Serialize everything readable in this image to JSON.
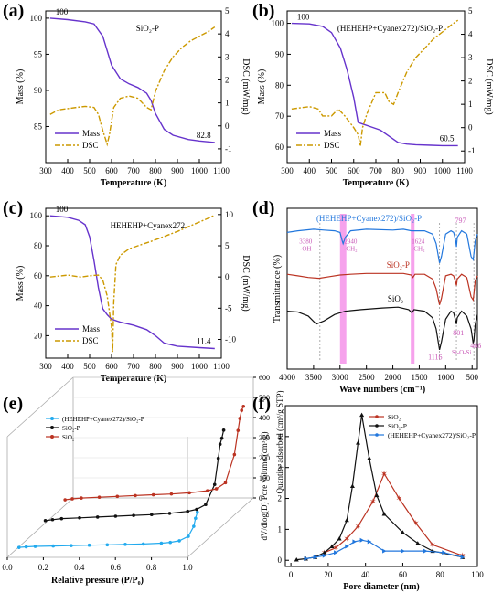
{
  "panels": {
    "a": {
      "letter": "(a)"
    },
    "b": {
      "letter": "(b)"
    },
    "c": {
      "letter": "(c)"
    },
    "d": {
      "letter": "(d)"
    },
    "e": {
      "letter": "(e)"
    },
    "f": {
      "letter": "(f)"
    }
  },
  "colors": {
    "mass": "#6633cc",
    "dsc": "#cc9900",
    "pink": "#ee55dd",
    "blue": "#2277dd",
    "red": "#bb3322",
    "black": "#111111",
    "cyan": "#22aaee"
  },
  "chart_data": [
    {
      "id": "a",
      "type": "line",
      "annotation": "SiO₂-P",
      "xlabel": "Temperature (K)",
      "ylabel": "Mass (%)",
      "y2label": "DSC (mW/mg)",
      "xlim": [
        300,
        1100
      ],
      "ylim": [
        80,
        101
      ],
      "y2lim": [
        -1.6,
        5
      ],
      "xticks": [
        300,
        400,
        500,
        600,
        700,
        800,
        900,
        1000,
        1100
      ],
      "yticks": [
        85,
        90,
        95,
        100
      ],
      "y2ticks": [
        -1,
        0,
        1,
        2,
        3,
        4,
        5
      ],
      "start_label": "100",
      "end_label": "82.8",
      "legend": [
        "Mass",
        "DSC"
      ],
      "series": [
        {
          "name": "Mass",
          "axis": "left",
          "style": "solid",
          "x": [
            320,
            400,
            480,
            520,
            560,
            600,
            640,
            680,
            720,
            760,
            780,
            800,
            840,
            880,
            950,
            1000,
            1070
          ],
          "y": [
            100,
            99.8,
            99.5,
            99.2,
            97.5,
            93.5,
            91.6,
            90.9,
            90.4,
            89.6,
            88.6,
            86.8,
            84.6,
            83.8,
            83.2,
            83,
            82.8
          ]
        },
        {
          "name": "DSC",
          "axis": "right",
          "style": "dashdot",
          "x": [
            320,
            360,
            400,
            440,
            480,
            520,
            540,
            560,
            580,
            590,
            610,
            640,
            680,
            720,
            760,
            780,
            800,
            840,
            880,
            920,
            960,
            1000,
            1040,
            1070
          ],
          "y": [
            0.5,
            0.7,
            0.75,
            0.8,
            0.85,
            0.8,
            0.5,
            -0.2,
            -0.8,
            -0.4,
            0.8,
            1.2,
            1.3,
            1.2,
            0.8,
            0.7,
            1.5,
            2.4,
            3.0,
            3.4,
            3.7,
            3.9,
            4.1,
            4.3
          ]
        }
      ]
    },
    {
      "id": "b",
      "type": "line",
      "annotation": "(HEHEHP+Cyanex272)/SiO₂-P",
      "xlabel": "Temperature (K)",
      "ylabel": "Mass (%)",
      "y2label": "DSC (mW/mg)",
      "xlim": [
        300,
        1100
      ],
      "ylim": [
        55,
        104
      ],
      "y2lim": [
        -1.5,
        5
      ],
      "xticks": [
        300,
        400,
        500,
        600,
        700,
        800,
        900,
        1000,
        1100
      ],
      "yticks": [
        60,
        70,
        80,
        90,
        100
      ],
      "y2ticks": [
        -1,
        0,
        1,
        2,
        3,
        4,
        5
      ],
      "start_label": "100",
      "end_label": "60.5",
      "legend": [
        "Mass",
        "DSC"
      ],
      "series": [
        {
          "name": "Mass",
          "axis": "left",
          "style": "solid",
          "x": [
            320,
            400,
            460,
            500,
            540,
            570,
            600,
            620,
            640,
            680,
            720,
            760,
            800,
            840,
            880,
            950,
            1000,
            1070
          ],
          "y": [
            100,
            99.8,
            99,
            97,
            92,
            85,
            76,
            68,
            67.5,
            66.5,
            65.5,
            63.5,
            61.5,
            61,
            60.8,
            60.6,
            60.5,
            60.5
          ]
        },
        {
          "name": "DSC",
          "axis": "right",
          "style": "dashdot",
          "x": [
            320,
            360,
            400,
            440,
            460,
            500,
            530,
            560,
            600,
            620,
            630,
            640,
            660,
            700,
            740,
            760,
            780,
            800,
            840,
            880,
            920,
            960,
            1000,
            1040,
            1070
          ],
          "y": [
            0.8,
            0.85,
            0.9,
            0.8,
            0.5,
            0.5,
            0.8,
            0.5,
            0.0,
            -0.3,
            -0.8,
            0.0,
            0.6,
            1.5,
            1.5,
            1.1,
            1.0,
            1.5,
            2.4,
            3.0,
            3.4,
            3.8,
            4.1,
            4.4,
            4.6
          ]
        }
      ]
    },
    {
      "id": "c",
      "type": "line",
      "annotation": "HEHEHP+Cyanex272",
      "xlabel": "Temperature (K)",
      "ylabel": "Mass (%)",
      "y2label": "DSC (mW/mg)",
      "xlim": [
        300,
        1100
      ],
      "ylim": [
        5,
        105
      ],
      "y2lim": [
        -13,
        11
      ],
      "xticks": [
        300,
        400,
        500,
        600,
        700,
        800,
        900,
        1000,
        1100
      ],
      "yticks": [
        20,
        40,
        60,
        80,
        100
      ],
      "y2ticks": [
        -10,
        -5,
        0,
        5,
        10
      ],
      "start_label": "100",
      "end_label": "11.4",
      "legend": [
        "Mass",
        "DSC"
      ],
      "series": [
        {
          "name": "Mass",
          "axis": "left",
          "style": "solid",
          "x": [
            320,
            400,
            450,
            480,
            500,
            520,
            540,
            560,
            580,
            600,
            640,
            700,
            760,
            800,
            840,
            900,
            1000,
            1070
          ],
          "y": [
            100,
            99,
            97,
            94,
            86,
            70,
            52,
            38,
            34,
            31,
            29,
            27,
            24,
            20,
            15,
            13,
            12,
            11.4
          ]
        },
        {
          "name": "DSC",
          "axis": "right",
          "style": "dashdot",
          "x": [
            320,
            400,
            460,
            500,
            540,
            560,
            580,
            600,
            605,
            610,
            620,
            640,
            680,
            720,
            780,
            840,
            900,
            960,
            1000,
            1040,
            1070
          ],
          "y": [
            0,
            0.3,
            0,
            0.2,
            0.3,
            -0.5,
            -3,
            -8,
            -12,
            -4,
            2,
            3.5,
            4.5,
            5,
            5.7,
            6.5,
            7.3,
            8.2,
            8.8,
            9.4,
            9.9
          ]
        }
      ]
    },
    {
      "id": "d",
      "type": "line",
      "xlabel": "Wave numbers (cm⁻¹)",
      "ylabel": "Transmittance (%)",
      "xlim": [
        4000,
        400
      ],
      "xticks": [
        4000,
        3500,
        3000,
        2500,
        2000,
        1500,
        1000,
        500
      ],
      "labels": {
        "top": "(HEHEHP+Cyanex272)/SiO₂-P",
        "mid": "SiO₂-P",
        "bot": "SiO₂"
      },
      "peak_labels": {
        "p3380": "3380\n-OH",
        "p2940": "2940\n-CH₂",
        "p1624": "1624\n-CH₂",
        "p1116": "1116",
        "p797": "797",
        "p801": "801",
        "p466": "466",
        "sio": "Si-O-Si"
      },
      "series": [
        {
          "name": "(HEHEHP+Cyanex272)/SiO₂-P",
          "color": "blue",
          "x": [
            4000,
            3800,
            3500,
            3300,
            3100,
            3000,
            2960,
            2940,
            2900,
            2850,
            2800,
            2500,
            2000,
            1800,
            1650,
            1600,
            1400,
            1250,
            1180,
            1116,
            1080,
            1000,
            900,
            850,
            810,
            797,
            780,
            700,
            600,
            520,
            480,
            466,
            440,
            400
          ],
          "y": [
            85,
            86,
            87,
            86.5,
            86,
            85,
            80,
            78,
            82,
            84,
            86,
            87,
            86.5,
            87,
            86,
            86,
            86,
            84,
            78,
            66,
            70,
            84,
            86,
            85,
            80,
            76,
            82,
            86,
            84,
            70,
            68,
            72,
            80,
            84
          ]
        },
        {
          "name": "SiO₂-P",
          "color": "red",
          "x": [
            4000,
            3800,
            3600,
            3400,
            3200,
            3000,
            2800,
            2500,
            2000,
            1800,
            1650,
            1620,
            1580,
            1400,
            1250,
            1180,
            1116,
            1080,
            1000,
            900,
            850,
            810,
            797,
            780,
            700,
            600,
            520,
            480,
            466,
            440,
            400
          ],
          "y": [
            59,
            58,
            57,
            56.5,
            57.5,
            58.5,
            59,
            59.5,
            59.5,
            59.5,
            58.5,
            57,
            59,
            59,
            56,
            50,
            40,
            44,
            58,
            59,
            58,
            54,
            52,
            56,
            59,
            57,
            45,
            43,
            47,
            55,
            58
          ]
        },
        {
          "name": "SiO₂",
          "color": "black",
          "x": [
            4000,
            3800,
            3600,
            3450,
            3300,
            3100,
            2900,
            2600,
            2200,
            1900,
            1700,
            1640,
            1600,
            1400,
            1250,
            1180,
            1116,
            1080,
            1000,
            900,
            850,
            810,
            797,
            780,
            700,
            600,
            520,
            480,
            466,
            440,
            400
          ],
          "y": [
            36,
            35.5,
            33,
            28,
            30,
            34,
            36,
            37,
            38,
            38.5,
            37,
            35,
            37,
            36,
            32,
            25,
            12,
            17,
            31,
            36,
            35,
            30,
            28,
            32,
            36,
            33,
            25,
            16,
            18,
            28,
            34
          ]
        }
      ]
    },
    {
      "id": "e",
      "type": "line",
      "xlabel": "Relative pressure (P/P₀)",
      "ylabel": "Quantity adsorbed (cm³/g STP)",
      "xlim": [
        0,
        1
      ],
      "xticks": [
        0.0,
        0.2,
        0.4,
        0.6,
        0.8,
        1.0
      ],
      "zticks": [
        0,
        100,
        200,
        300,
        400,
        500,
        600
      ],
      "legend": [
        "(HEHEHP+Cyanex272)/SiO₂-P",
        "SiO₂-P",
        "SiO₂"
      ],
      "series": [
        {
          "name": "(HEHEHP+Cyanex272)/SiO₂-P",
          "color": "cyan",
          "x": [
            0.01,
            0.05,
            0.1,
            0.2,
            0.3,
            0.4,
            0.5,
            0.6,
            0.7,
            0.8,
            0.85,
            0.9,
            0.95,
            0.98,
            0.99,
            1.0
          ],
          "y": [
            5,
            8,
            10,
            12,
            14,
            16,
            18,
            20,
            22,
            26,
            30,
            38,
            60,
            110,
            150,
            180
          ]
        },
        {
          "name": "SiO₂-P",
          "color": "black",
          "x": [
            0.01,
            0.05,
            0.1,
            0.2,
            0.3,
            0.4,
            0.5,
            0.6,
            0.7,
            0.8,
            0.85,
            0.9,
            0.95,
            0.97,
            0.98,
            0.99,
            1.0
          ],
          "y": [
            20,
            25,
            30,
            34,
            38,
            42,
            46,
            50,
            56,
            66,
            76,
            100,
            200,
            330,
            400,
            430,
            470
          ]
        },
        {
          "name": "SiO₂",
          "color": "red",
          "x": [
            0.01,
            0.05,
            0.1,
            0.2,
            0.3,
            0.4,
            0.5,
            0.6,
            0.7,
            0.8,
            0.85,
            0.9,
            0.95,
            0.97,
            0.98,
            0.99,
            1.0
          ],
          "y": [
            35,
            40,
            44,
            48,
            52,
            56,
            60,
            64,
            70,
            80,
            90,
            120,
            260,
            380,
            440,
            480,
            500
          ]
        }
      ]
    },
    {
      "id": "f",
      "type": "line",
      "xlabel": "Pore diameter (nm)",
      "ylabel": "dV/dlog(D) Pore volume (cm³/g)",
      "xlim": [
        -3,
        100
      ],
      "ylim": [
        -0.2,
        5
      ],
      "xticks": [
        0,
        20,
        40,
        60,
        80,
        100
      ],
      "yticks": [
        0,
        1,
        2,
        3,
        4
      ],
      "legend": [
        "SiO₂",
        "SiO₂-P",
        "(HEHEHP+Cyanex272)/SiO₂-P"
      ],
      "series": [
        {
          "name": "SiO₂",
          "color": "red",
          "x": [
            18,
            24,
            30,
            36,
            44,
            50,
            58,
            67,
            76,
            92
          ],
          "y": [
            0.25,
            0.4,
            0.7,
            1.1,
            1.9,
            2.8,
            2.0,
            1.2,
            0.5,
            0.15
          ]
        },
        {
          "name": "SiO₂-P",
          "color": "black",
          "x": [
            3,
            8,
            13,
            18,
            22,
            26,
            30,
            33,
            36,
            38,
            42,
            46,
            50,
            60,
            68,
            76,
            92
          ],
          "y": [
            0.02,
            0.05,
            0.1,
            0.25,
            0.45,
            0.7,
            1.3,
            2.4,
            3.8,
            4.7,
            3.3,
            2.1,
            1.5,
            0.9,
            0.55,
            0.3,
            0.1
          ]
        },
        {
          "name": "(HEHEHP+Cyanex272)/SiO₂-P",
          "color": "blue",
          "x": [
            8,
            13,
            18,
            24,
            30,
            34,
            38,
            42,
            50,
            60,
            72,
            82,
            92
          ],
          "y": [
            0.05,
            0.1,
            0.15,
            0.25,
            0.45,
            0.6,
            0.65,
            0.6,
            0.3,
            0.3,
            0.3,
            0.25,
            0.1
          ]
        }
      ]
    }
  ]
}
